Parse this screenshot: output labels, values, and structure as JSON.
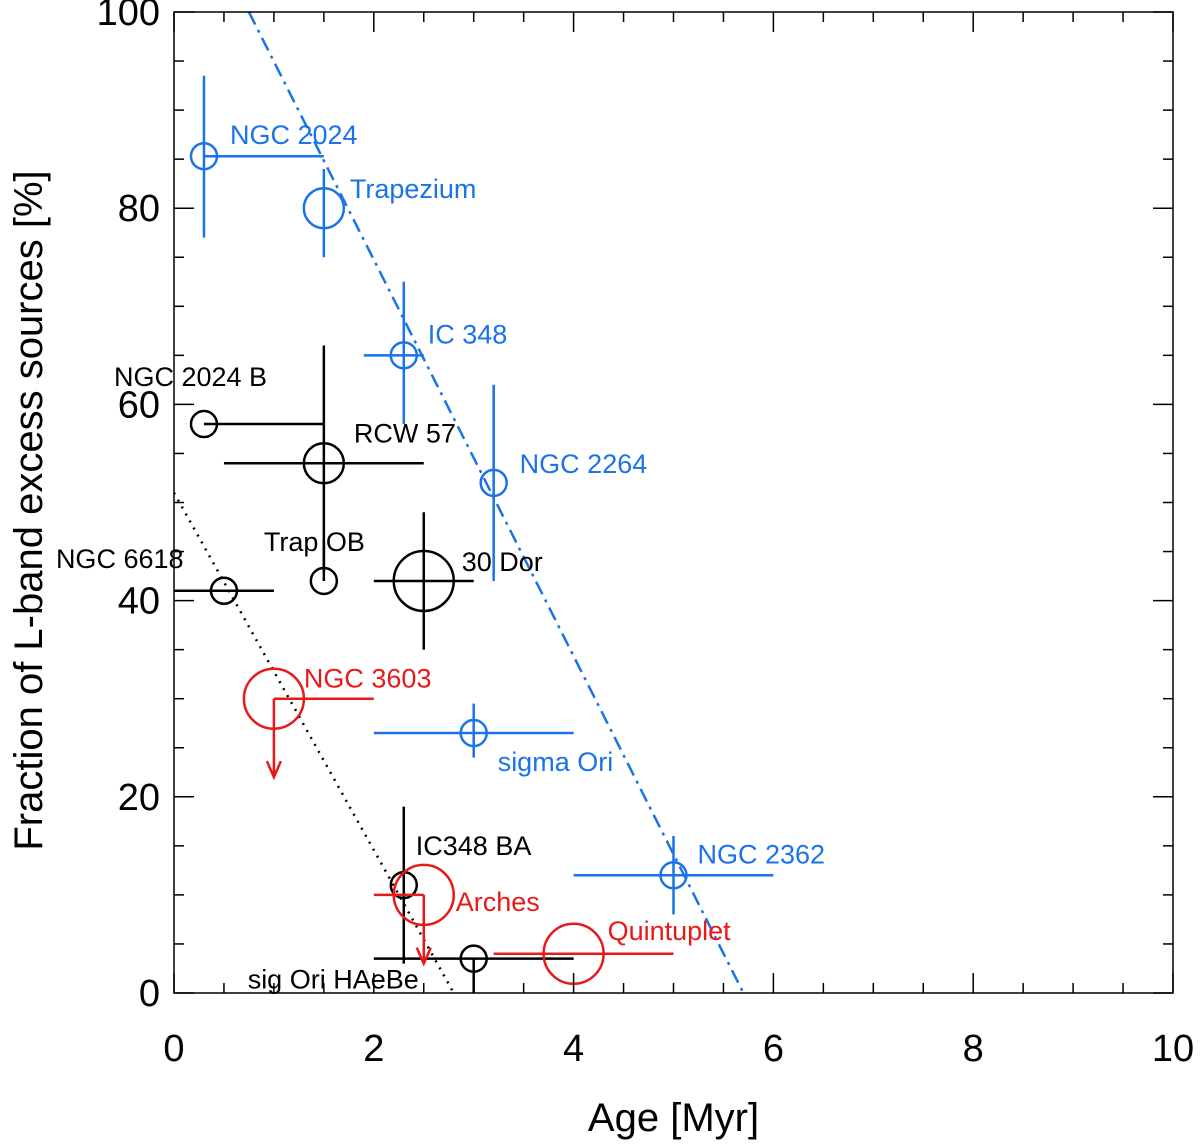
{
  "chart_data": {
    "type": "scatter",
    "xlabel": "Age [Myr]",
    "ylabel": "Fraction of L-band excess sources [%]",
    "xlim": [
      0,
      10
    ],
    "ylim": [
      0,
      100
    ],
    "xticks": [
      "0",
      "2",
      "4",
      "6",
      "8",
      "10"
    ],
    "yticks": [
      "0",
      "20",
      "40",
      "60",
      "80",
      "100"
    ],
    "grid": false,
    "colors": {
      "blue": "#1a73e8",
      "black": "#000000",
      "red": "#e8191a"
    },
    "points": [
      {
        "label": "NGC 2024",
        "color": "blue",
        "x": 0.3,
        "y": 85.3,
        "xerr": [
          0.3,
          1.5
        ],
        "yerr": [
          77,
          93.5
        ],
        "size": "small"
      },
      {
        "label": "Trapezium",
        "color": "blue",
        "x": 1.5,
        "y": 80,
        "xerr": null,
        "yerr": [
          75,
          84
        ],
        "size": "medium"
      },
      {
        "label": "IC 348",
        "color": "blue",
        "x": 2.3,
        "y": 65,
        "xerr": [
          1.9,
          2.5
        ],
        "yerr": [
          58,
          72.5
        ],
        "size": "small"
      },
      {
        "label": "NGC 2264",
        "color": "blue",
        "x": 3.2,
        "y": 52,
        "xerr": null,
        "yerr": [
          42,
          62
        ],
        "size": "small"
      },
      {
        "label": "sigma Ori",
        "color": "blue",
        "x": 3.0,
        "y": 26.5,
        "xerr": [
          2,
          4
        ],
        "yerr": [
          24,
          29.5
        ],
        "size": "small"
      },
      {
        "label": "NGC 2362",
        "color": "blue",
        "x": 5.0,
        "y": 12,
        "xerr": [
          4,
          6
        ],
        "yerr": [
          8,
          16
        ],
        "size": "small"
      },
      {
        "label": "NGC 2024 B",
        "color": "black",
        "x": 0.3,
        "y": 58,
        "xerr": [
          0.3,
          1.5
        ],
        "yerr": null,
        "size": "small"
      },
      {
        "label": "RCW 57",
        "color": "black",
        "x": 1.5,
        "y": 54,
        "xerr": [
          0.5,
          2.5
        ],
        "yerr": [
          43,
          66
        ],
        "size": "medium"
      },
      {
        "label": "Trap OB",
        "color": "black",
        "x": 1.5,
        "y": 42,
        "xerr": null,
        "yerr": [
          42,
          46
        ],
        "size": "small"
      },
      {
        "label": "30 Dor",
        "color": "black",
        "x": 2.5,
        "y": 42,
        "xerr": [
          2,
          3
        ],
        "yerr": [
          35,
          49
        ],
        "size": "large"
      },
      {
        "label": "NGC 6618",
        "color": "black",
        "x": 0.5,
        "y": 41,
        "xerr": [
          0,
          1
        ],
        "yerr": null,
        "size": "small"
      },
      {
        "label": "IC348 BA",
        "color": "black",
        "x": 2.3,
        "y": 11,
        "xerr": [
          2.3,
          2.3
        ],
        "yerr": [
          3,
          19
        ],
        "size": "small"
      },
      {
        "label": "sig Ori HAeBe",
        "color": "black",
        "x": 3.0,
        "y": 3.5,
        "xerr": [
          2,
          4
        ],
        "yerr": [
          0,
          3.5
        ],
        "size": "small"
      },
      {
        "label": "NGC 3603",
        "color": "red",
        "x": 1.0,
        "y": 30,
        "xerr": [
          1,
          2
        ],
        "yerr": null,
        "size": "large",
        "upper_limit_to": 22
      },
      {
        "label": "Arches",
        "color": "red",
        "x": 2.5,
        "y": 10,
        "xerr": [
          2,
          2.5
        ],
        "yerr": null,
        "size": "large",
        "upper_limit_to": 3
      },
      {
        "label": "Quintuplet",
        "color": "red",
        "x": 4.0,
        "y": 4,
        "xerr": [
          3.2,
          5
        ],
        "yerr": null,
        "size": "large"
      }
    ],
    "fit_lines": [
      {
        "color": "blue",
        "style": "dash-dot",
        "x": [
          0.75,
          5.7
        ],
        "y": [
          100,
          0
        ]
      },
      {
        "color": "black",
        "style": "dotted",
        "x": [
          0,
          2.8
        ],
        "y": [
          51,
          0
        ]
      }
    ]
  }
}
